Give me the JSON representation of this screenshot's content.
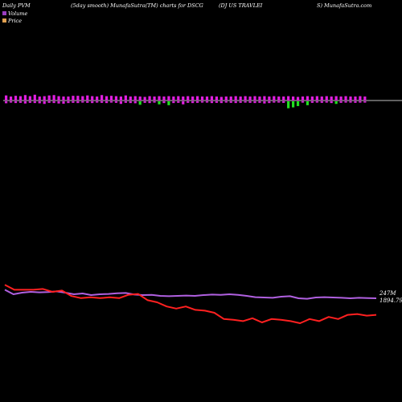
{
  "header": {
    "left": "Daily PVM",
    "center": "(5day smooth) MunafaSutra(TM) charts for DSCG",
    "right_a": "(DJ US TRAVLEI",
    "right_b": "S) MunafaSutra.com"
  },
  "legend": {
    "volume": "Volume",
    "price": "Price"
  },
  "colors": {
    "background": "#000000",
    "up": "#e020e0",
    "down": "#20e020",
    "volume_line": "#b060e0",
    "price_line": "#ff2020",
    "baseline": "#c0c0c0"
  },
  "chart_data": {
    "type": "line",
    "title": "(5day smooth) MunafaSutra(TM) charts for DSCG",
    "series": [
      {
        "name": "Volume",
        "last_label": "247M",
        "values": [
          0.88,
          0.6,
          0.7,
          0.75,
          0.72,
          0.74,
          0.78,
          0.7,
          0.6,
          0.65,
          0.55,
          0.6,
          0.62,
          0.66,
          0.68,
          0.58,
          0.55,
          0.56,
          0.5,
          0.48,
          0.5,
          0.52,
          0.5,
          0.55,
          0.58,
          0.56,
          0.6,
          0.56,
          0.5,
          0.42,
          0.4,
          0.38,
          0.45,
          0.48,
          0.35,
          0.32,
          0.4,
          0.42,
          0.4,
          0.38,
          0.35,
          0.38,
          0.36,
          0.35
        ]
      },
      {
        "name": "Price",
        "last_label": "1894.79",
        "values": [
          0.92,
          0.8,
          0.8,
          0.8,
          0.82,
          0.75,
          0.78,
          0.65,
          0.6,
          0.62,
          0.6,
          0.62,
          0.6,
          0.68,
          0.7,
          0.55,
          0.5,
          0.4,
          0.35,
          0.4,
          0.32,
          0.3,
          0.25,
          0.1,
          0.08,
          0.05,
          0.12,
          0.02,
          0.1,
          0.08,
          0.05,
          0.0,
          0.1,
          0.05,
          0.15,
          0.1,
          0.2,
          0.22,
          0.18,
          0.2
        ]
      }
    ],
    "pvm_bars": [
      {
        "up": 1,
        "v": 0.7
      },
      {
        "up": 1,
        "v": 0.55
      },
      {
        "up": 1,
        "v": 0.65
      },
      {
        "up": 1,
        "v": 0.6
      },
      {
        "up": 1,
        "v": 0.75
      },
      {
        "up": 1,
        "v": 0.6
      },
      {
        "up": 1,
        "v": 0.8
      },
      {
        "up": 1,
        "v": 0.55
      },
      {
        "up": 1,
        "v": 0.6
      },
      {
        "up": 1,
        "v": 0.7
      },
      {
        "up": 1,
        "v": 0.75
      },
      {
        "up": 1,
        "v": 0.6
      },
      {
        "up": 1,
        "v": 0.55
      },
      {
        "up": 1,
        "v": 0.55
      },
      {
        "up": 1,
        "v": 0.65
      },
      {
        "up": 1,
        "v": 0.65
      },
      {
        "up": 1,
        "v": 0.6
      },
      {
        "up": 1,
        "v": 0.7
      },
      {
        "up": 1,
        "v": 0.6
      },
      {
        "up": 1,
        "v": 0.55
      },
      {
        "up": 1,
        "v": 0.75
      },
      {
        "up": 1,
        "v": 0.6
      },
      {
        "up": 1,
        "v": 0.65
      },
      {
        "up": 1,
        "v": 0.6
      },
      {
        "up": 1,
        "v": 0.55
      },
      {
        "up": 1,
        "v": 0.7
      },
      {
        "up": 1,
        "v": 0.55
      },
      {
        "up": 1,
        "v": 0.6
      },
      {
        "up": 1,
        "v": 0.55
      },
      {
        "up": 1,
        "v": 0.5
      },
      {
        "up": 1,
        "v": 0.6
      },
      {
        "up": 1,
        "v": 0.55
      },
      {
        "up": 1,
        "v": 0.6
      },
      {
        "up": 1,
        "v": 0.55
      },
      {
        "up": 1,
        "v": 0.6
      },
      {
        "up": 1,
        "v": 0.55
      },
      {
        "up": 1,
        "v": 0.6
      },
      {
        "up": 1,
        "v": 0.55
      },
      {
        "up": 1,
        "v": 0.6
      },
      {
        "up": 1,
        "v": 0.55
      },
      {
        "up": 1,
        "v": 0.6
      },
      {
        "up": 1,
        "v": 0.55
      },
      {
        "up": 1,
        "v": 0.55
      },
      {
        "up": 1,
        "v": 0.6
      },
      {
        "up": 1,
        "v": 0.55
      },
      {
        "up": 1,
        "v": 0.5
      },
      {
        "up": 1,
        "v": 0.55
      },
      {
        "up": 1,
        "v": 0.55
      },
      {
        "up": 1,
        "v": 0.6
      },
      {
        "up": 1,
        "v": 0.55
      },
      {
        "up": 1,
        "v": 0.6
      },
      {
        "up": 1,
        "v": 0.55
      },
      {
        "up": 1,
        "v": 0.6
      },
      {
        "up": 1,
        "v": 0.55
      },
      {
        "up": 1,
        "v": 0.6
      },
      {
        "up": 1,
        "v": 0.55
      },
      {
        "up": 1,
        "v": 0.6
      },
      {
        "up": 1,
        "v": 0.55
      },
      {
        "up": 1,
        "v": 0.55
      },
      {
        "up": 1,
        "v": 0.6
      },
      {
        "up": 1,
        "v": 0.55
      },
      {
        "up": 1,
        "v": 0.5
      },
      {
        "up": 1,
        "v": 0.55
      },
      {
        "up": 1,
        "v": 0.6
      },
      {
        "up": 1,
        "v": 0.55
      },
      {
        "up": 1,
        "v": 0.6
      },
      {
        "up": 1,
        "v": 0.55
      },
      {
        "up": 1,
        "v": 0.6
      },
      {
        "up": 1,
        "v": 0.55
      },
      {
        "up": 1,
        "v": 0.6
      },
      {
        "up": 1,
        "v": 0.55
      },
      {
        "up": 1,
        "v": 0.6
      },
      {
        "up": 1,
        "v": 0.55
      },
      {
        "up": 1,
        "v": 0.55
      },
      {
        "up": 1,
        "v": 0.6
      },
      {
        "up": 1,
        "v": 0.55
      }
    ],
    "pvm_down": [
      {
        "v": 0.45
      },
      {
        "v": 0.3
      },
      {
        "v": 0.4
      },
      {
        "v": 0.35
      },
      {
        "v": 0.5
      },
      {
        "v": 0.35
      },
      {
        "v": 0.4
      },
      {
        "v": 0.45
      },
      {
        "v": 0.6
      },
      {
        "v": 0.35
      },
      {
        "v": 0.4
      },
      {
        "v": 0.5
      },
      {
        "v": 0.55
      },
      {
        "v": 0.4
      },
      {
        "v": 0.35
      },
      {
        "v": 0.4
      },
      {
        "v": 0.3
      },
      {
        "v": 0.35
      },
      {
        "v": 0.4
      },
      {
        "v": 0.3
      },
      {
        "v": 0.35
      },
      {
        "v": 0.4
      },
      {
        "v": 0.3
      },
      {
        "v": 0.35
      },
      {
        "v": 0.6
      },
      {
        "v": 0.35
      },
      {
        "v": 0.4
      },
      {
        "v": 0.45
      },
      {
        "v": 0.4
      },
      {
        "v": 0.35
      },
      {
        "v": 0.4
      },
      {
        "v": 0.3
      },
      {
        "v": 0.35
      },
      {
        "v": 0.4
      },
      {
        "v": 0.45
      },
      {
        "v": 0.4
      },
      {
        "v": 0.35
      },
      {
        "v": 0.7
      },
      {
        "v": 0.35
      },
      {
        "v": 0.4
      },
      {
        "v": 0.35
      },
      {
        "v": 0.3
      },
      {
        "v": 0.3
      },
      {
        "v": 0.4
      },
      {
        "v": 0.35
      },
      {
        "v": 0.4
      },
      {
        "v": 0.3
      },
      {
        "v": 0.35
      },
      {
        "v": 0.4
      },
      {
        "v": 0.35
      },
      {
        "v": 0.3
      },
      {
        "v": 0.35
      },
      {
        "v": 0.4
      },
      {
        "v": 0.35
      },
      {
        "v": 0.5
      },
      {
        "v": 0.4
      },
      {
        "v": 0.3
      },
      {
        "v": 0.3
      },
      {
        "v": 0.35
      },
      {
        "v": 0.8
      },
      {
        "v": 0.7
      },
      {
        "v": 0.55
      },
      {
        "v": 0.3
      },
      {
        "v": 0.45
      },
      {
        "v": 0.35
      },
      {
        "v": 0.3
      },
      {
        "v": 0.35
      },
      {
        "v": 0.3
      },
      {
        "v": 0.4
      },
      {
        "v": 0.3
      },
      {
        "v": 0.35
      },
      {
        "v": 0.3
      },
      {
        "v": 0.3
      },
      {
        "v": 0.35
      },
      {
        "v": 0.3
      },
      {
        "v": 0.3
      }
    ],
    "down_green_mask": [
      0,
      0,
      0,
      0,
      0,
      0,
      0,
      0,
      0,
      0,
      0,
      0,
      0,
      0,
      0,
      0,
      0,
      0,
      0,
      0,
      0,
      0,
      0,
      0,
      0,
      0,
      0,
      0,
      1,
      0,
      0,
      0,
      1,
      0,
      1,
      0,
      0,
      0,
      0,
      0,
      0,
      0,
      0,
      0,
      0,
      0,
      0,
      0,
      0,
      0,
      0,
      0,
      0,
      0,
      0,
      0,
      0,
      0,
      0,
      1,
      1,
      1,
      0,
      1,
      0,
      0,
      0,
      0,
      0,
      1,
      0,
      0,
      0,
      0,
      0,
      0
    ],
    "grid": false,
    "legend_position": "top-left"
  }
}
